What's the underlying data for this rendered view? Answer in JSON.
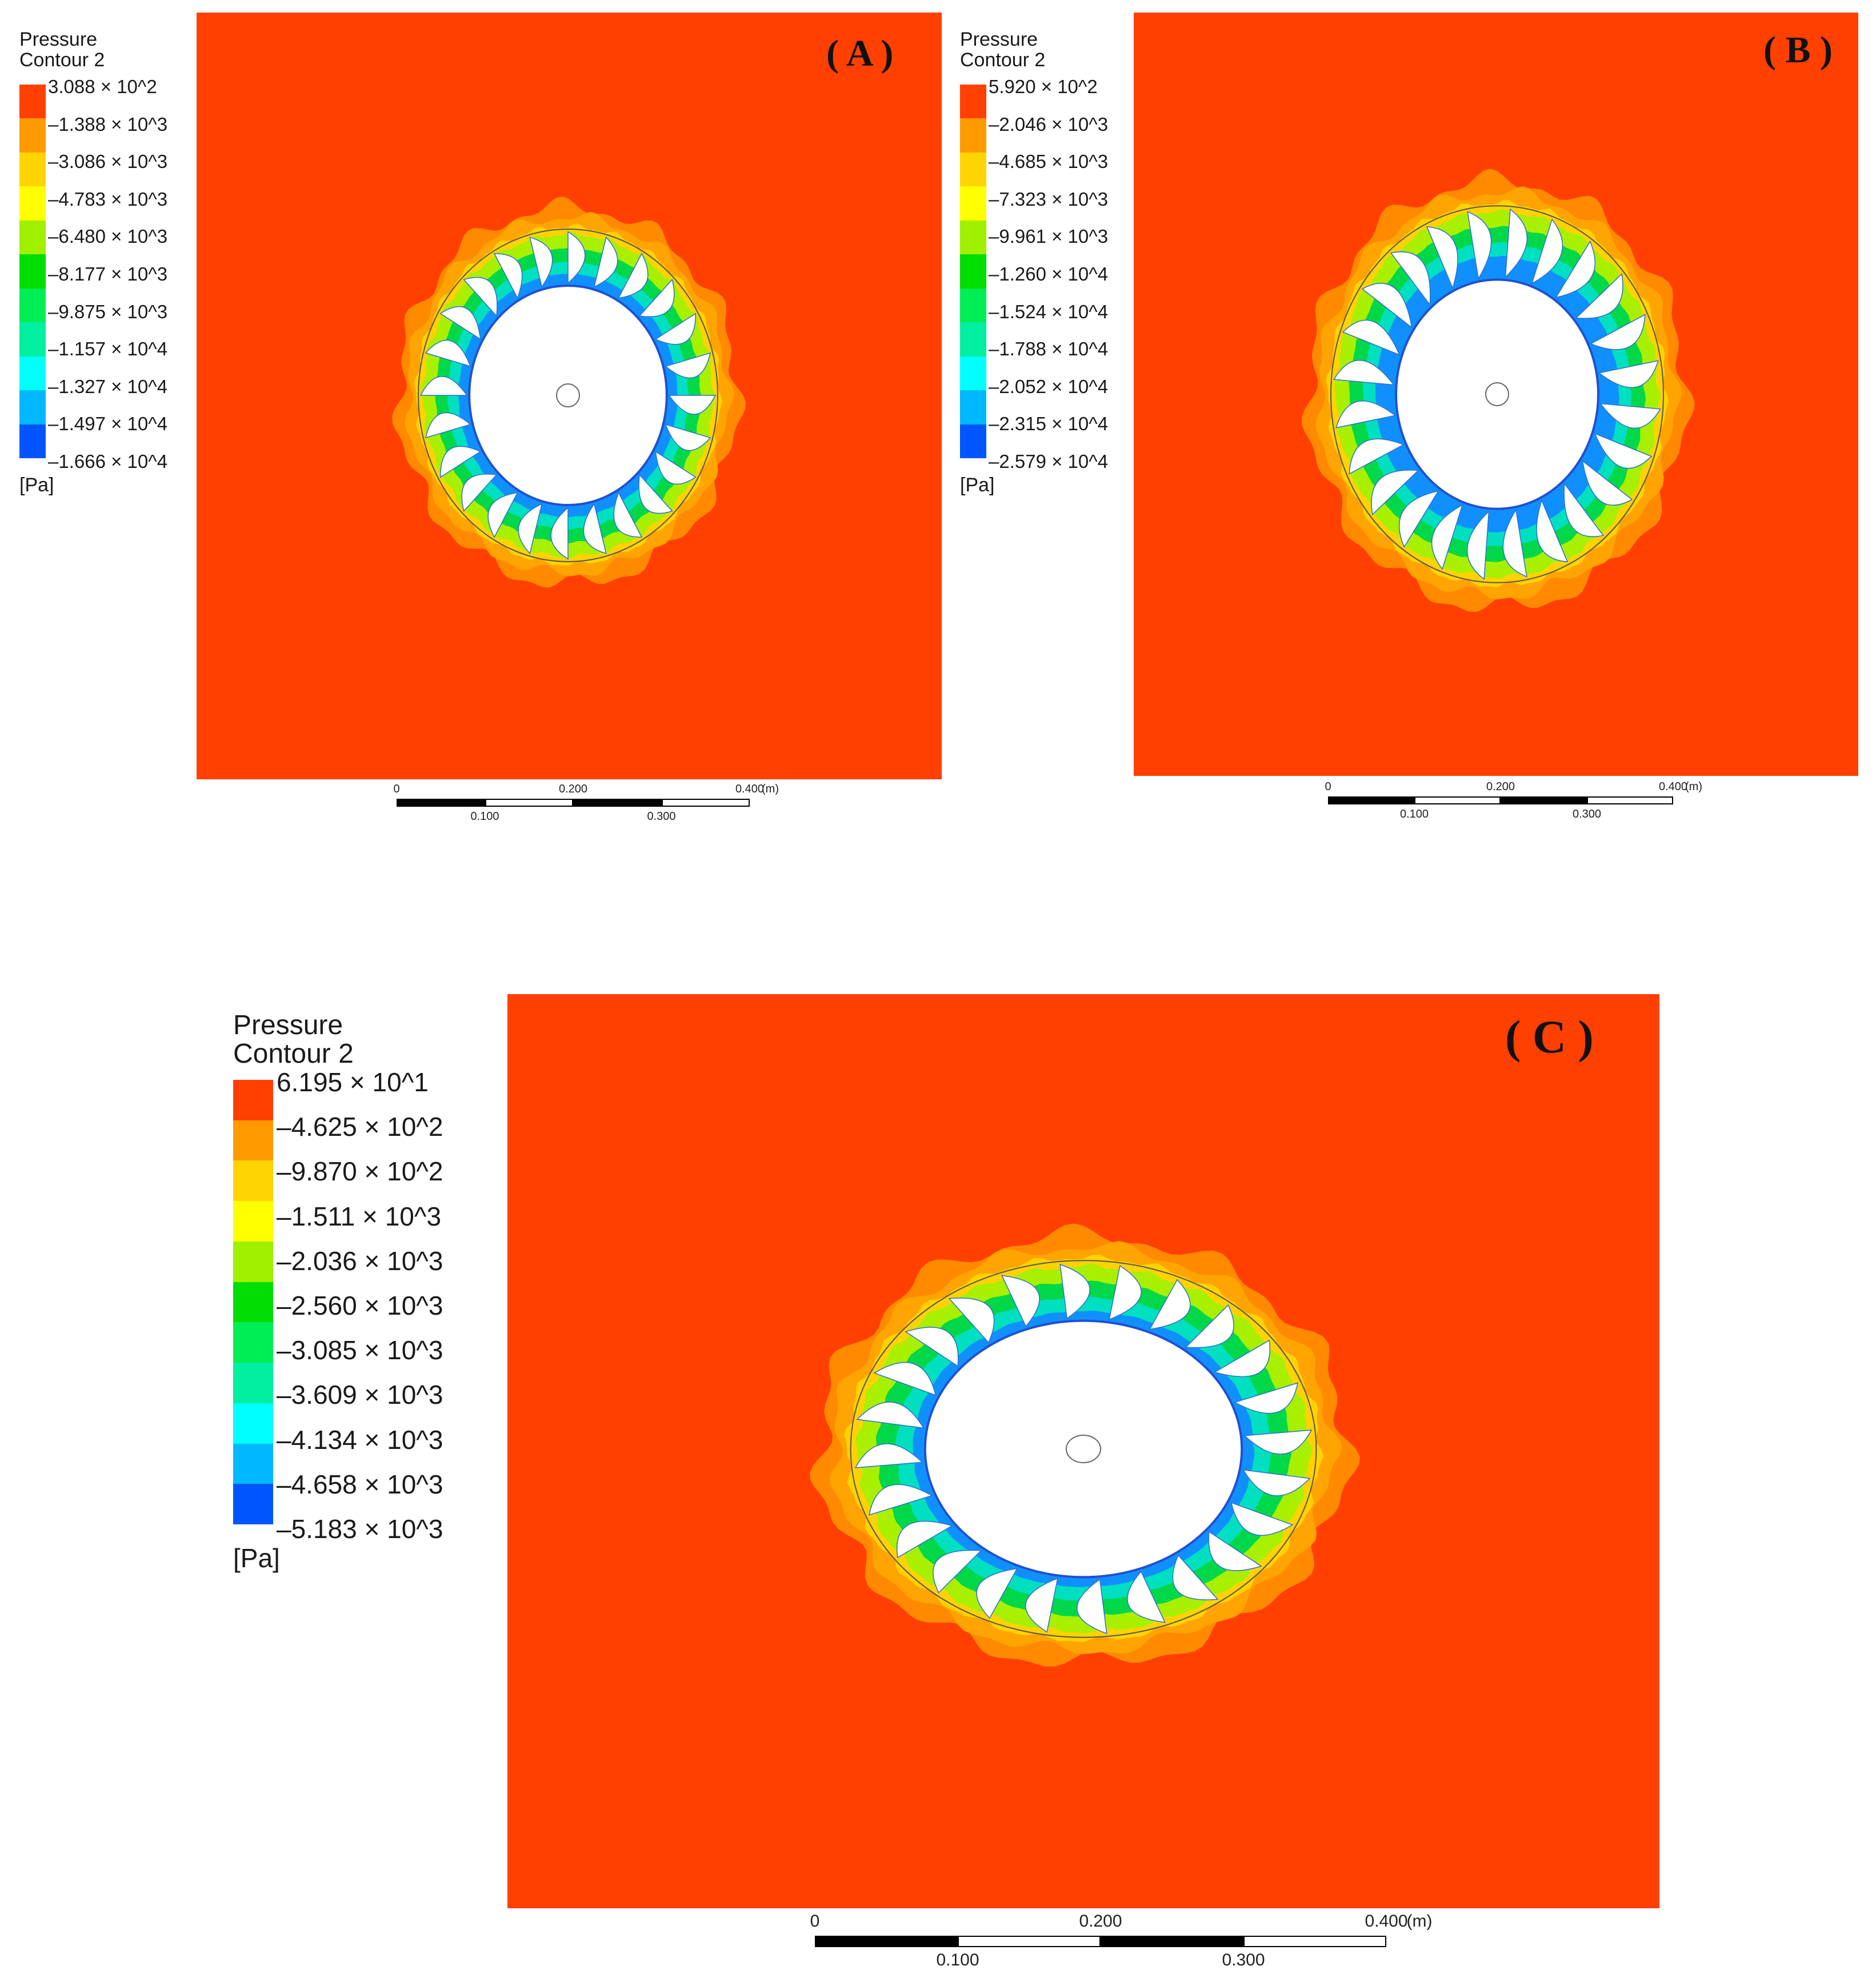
{
  "colors": {
    "background": "#ff4000",
    "hub": "#ffffff",
    "blade": "#ffffff",
    "outline": "#555555",
    "legend_bands": [
      "#ff4000",
      "#ff9a00",
      "#ffd400",
      "#ffff00",
      "#a0f000",
      "#00dd00",
      "#00ee55",
      "#00efa0",
      "#00ffff",
      "#00b8ff",
      "#0055ff"
    ]
  },
  "panels": [
    {
      "tag": "( A )",
      "legend": {
        "title": "Pressure",
        "subtitle": "Contour 2",
        "unit": "[Pa]",
        "levels": [
          "3.088 × 10^2",
          "–1.388 × 10^3",
          "–3.086 × 10^3",
          "–4.783 × 10^3",
          "–6.480 × 10^3",
          "–8.177 × 10^3",
          "–9.875 × 10^3",
          "–1.157 × 10^4",
          "–1.327 × 10^4",
          "–1.497 × 10^4",
          "–1.666 × 10^4"
        ]
      },
      "scale": {
        "unit": "(m)",
        "ticks_top": [
          "0",
          "0.200",
          "0.400"
        ],
        "ticks_bottom": [
          "0.100",
          "0.300"
        ]
      }
    },
    {
      "tag": "( B )",
      "legend": {
        "title": "Pressure",
        "subtitle": "Contour 2",
        "unit": "[Pa]",
        "levels": [
          "5.920 × 10^2",
          "–2.046 × 10^3",
          "–4.685 × 10^3",
          "–7.323 × 10^3",
          "–9.961 × 10^3",
          "–1.260 × 10^4",
          "–1.524 × 10^4",
          "–1.788 × 10^4",
          "–2.052 × 10^4",
          "–2.315 × 10^4",
          "–2.579 × 10^4"
        ]
      },
      "scale": {
        "unit": "(m)",
        "ticks_top": [
          "0",
          "0.200",
          "0.400"
        ],
        "ticks_bottom": [
          "0.100",
          "0.300"
        ]
      }
    },
    {
      "tag": "( C )",
      "legend": {
        "title": "Pressure",
        "subtitle": "Contour 2",
        "unit": "[Pa]",
        "levels": [
          "6.195 × 10^1",
          "–4.625 × 10^2",
          "–9.870 × 10^2",
          "–1.511 × 10^3",
          "–2.036 × 10^3",
          "–2.560 × 10^3",
          "–3.085 × 10^3",
          "–3.609 × 10^3",
          "–4.134 × 10^3",
          "–4.658 × 10^3",
          "–5.183 × 10^3"
        ]
      },
      "scale": {
        "unit": "(m)",
        "ticks_top": [
          "0",
          "0.200",
          "0.400"
        ],
        "ticks_bottom": [
          "0.100",
          "0.300"
        ]
      }
    }
  ]
}
